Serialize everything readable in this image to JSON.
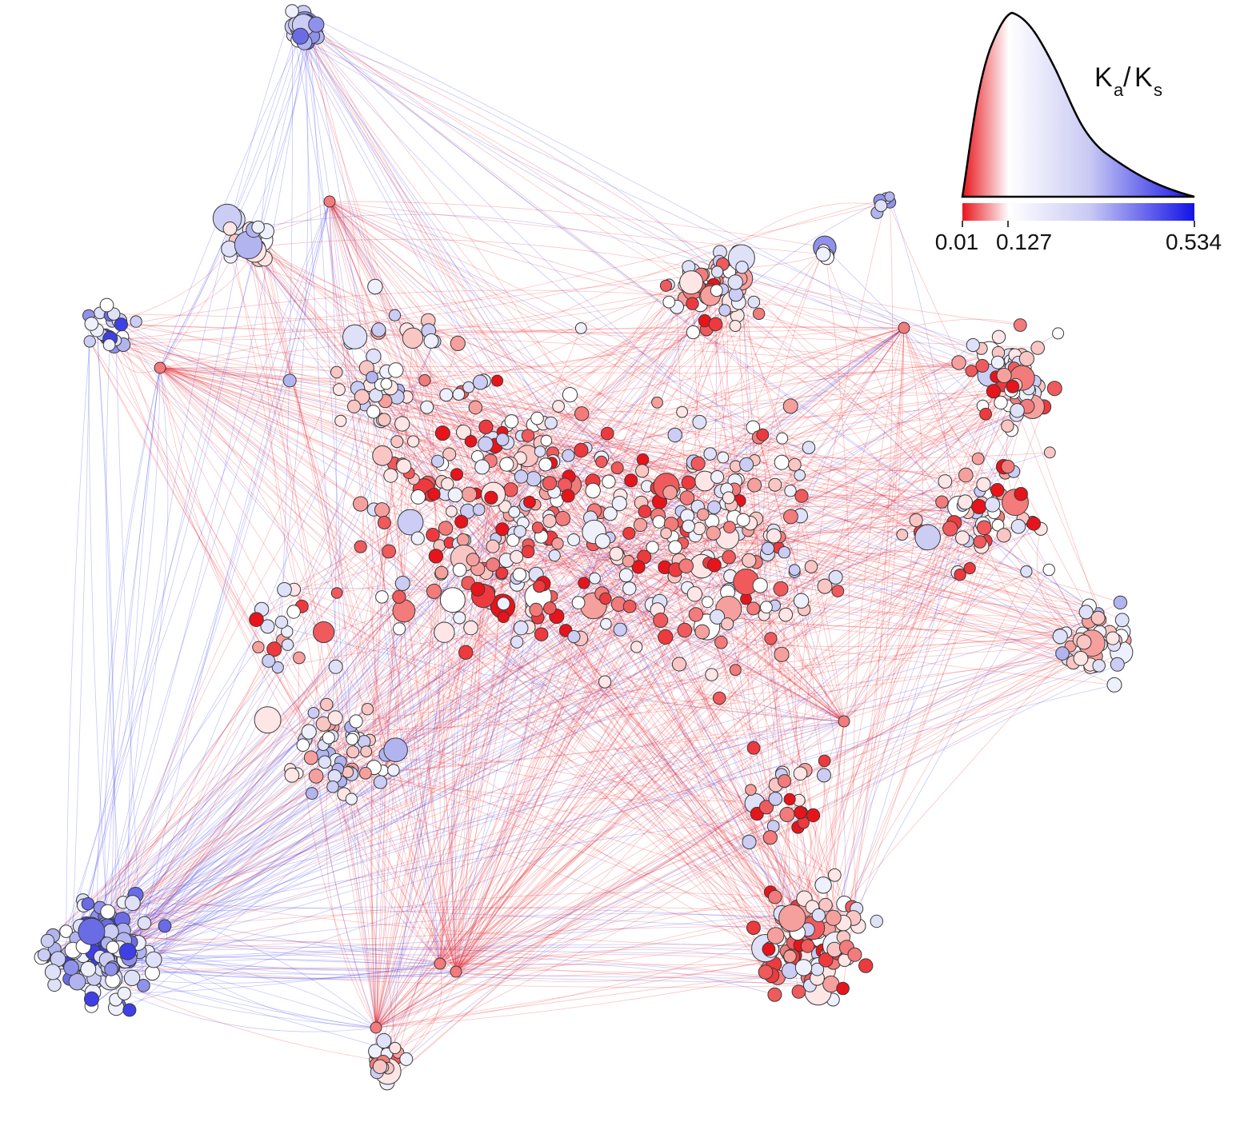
{
  "legend": {
    "label_main": "K",
    "label_sub_a": "a",
    "label_sep": "/",
    "label_main2": "K",
    "label_sub_s": "s",
    "tick_min": "0.01",
    "tick_mid": "0.127",
    "tick_max": "0.534",
    "color_low": "#e8141b",
    "color_mid": "#ffffff",
    "color_high": "#1212e6"
  },
  "edge_colors": {
    "red": "#e8141b",
    "blue": "#3a3ae8"
  }
}
